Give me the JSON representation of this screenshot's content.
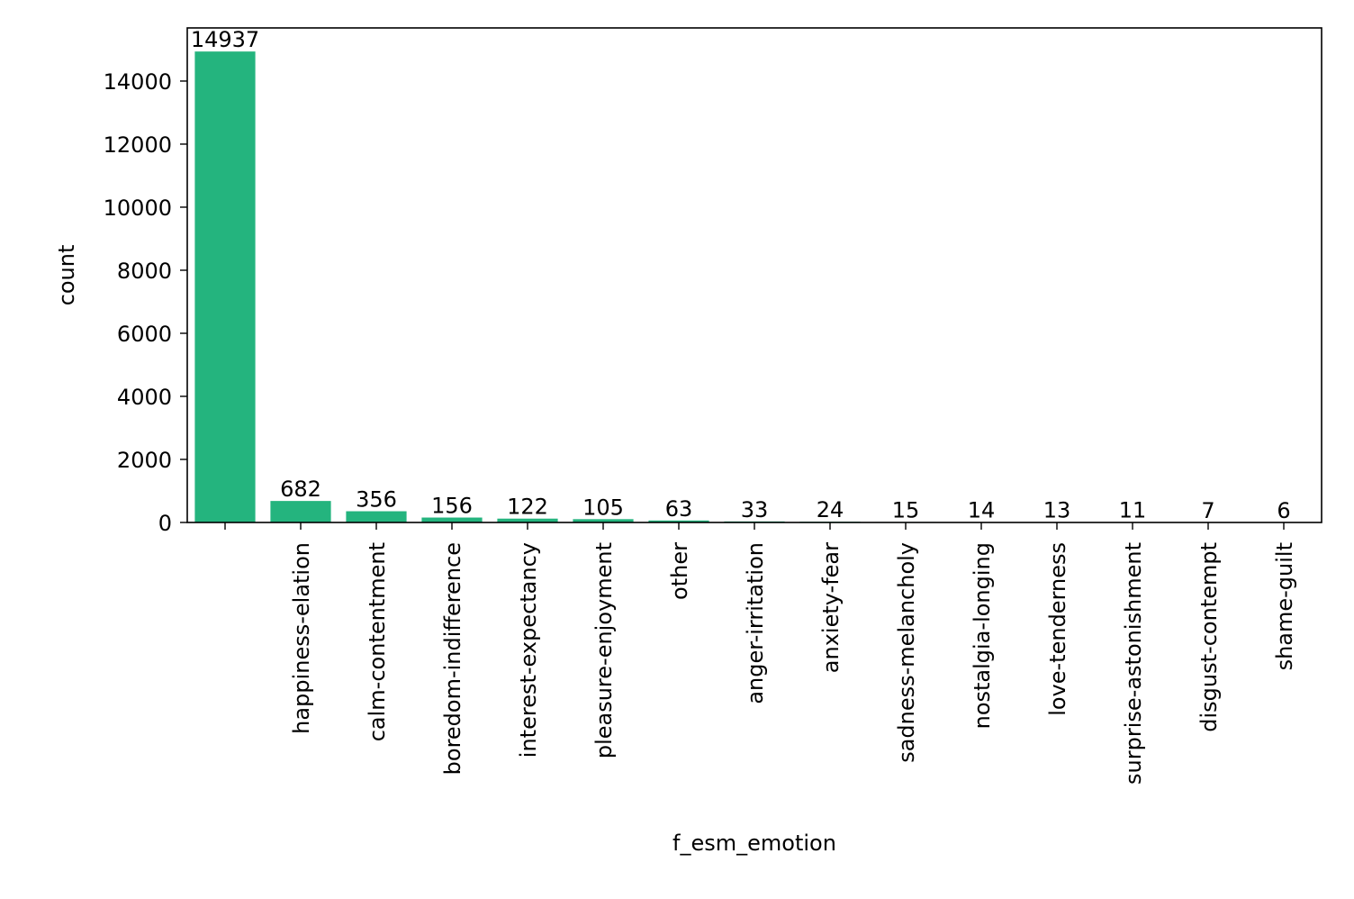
{
  "chart_data": {
    "type": "bar",
    "title": "",
    "xlabel": "f_esm_emotion",
    "ylabel": "count",
    "categories": [
      "",
      "happiness-elation",
      "calm-contentment",
      "boredom-indifference",
      "interest-expectancy",
      "pleasure-enjoyment",
      "other",
      "anger-irritation",
      "anxiety-fear",
      "sadness-melancholy",
      "nostalgia-longing",
      "love-tenderness",
      "surprise-astonishment",
      "disgust-contempt",
      "shame-guilt"
    ],
    "values": [
      14937,
      682,
      356,
      156,
      122,
      105,
      63,
      33,
      24,
      15,
      14,
      13,
      11,
      7,
      6
    ],
    "data_labels": [
      "14937",
      "682",
      "356",
      "156",
      "122",
      "105",
      "63",
      "33",
      "24",
      "15",
      "14",
      "13",
      "11",
      "7",
      "6"
    ],
    "ylim": [
      0,
      15685
    ],
    "yticks": [
      0,
      2000,
      4000,
      6000,
      8000,
      10000,
      12000,
      14000
    ],
    "ytick_labels": [
      "0",
      "2000",
      "4000",
      "6000",
      "8000",
      "10000",
      "12000",
      "14000"
    ],
    "bar_color": "#24b47e",
    "grid": false,
    "legend": "none"
  }
}
